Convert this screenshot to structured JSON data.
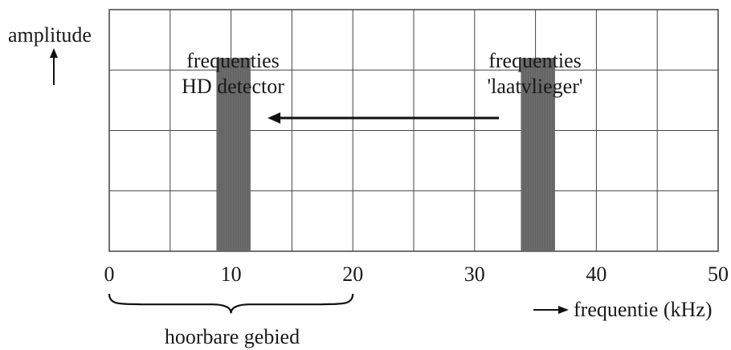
{
  "chart_data": {
    "type": "bar",
    "xlabel": "frequentie (kHz)",
    "ylabel": "amplitude",
    "xlim": [
      0,
      50
    ],
    "x_ticks": [
      0,
      10,
      20,
      30,
      40,
      50
    ],
    "grid": true,
    "bands": [
      {
        "x_start": 8.8,
        "x_end": 11.6,
        "amplitude": 0.8,
        "label_line1": "frequenties",
        "label_line2": "HD detector"
      },
      {
        "x_start": 33.8,
        "x_end": 36.6,
        "amplitude": 0.8,
        "label_line1": "frequenties",
        "label_line2": "'laatvlieger'"
      }
    ],
    "shift_arrow": {
      "from_x": 32,
      "to_x": 13
    },
    "audible_range": {
      "from_x": 0,
      "to_x": 20,
      "label": "hoorbare gebied"
    }
  },
  "colors": {
    "band": "#6b6b6b",
    "grid": "#444444",
    "text": "#1a1a1a"
  }
}
